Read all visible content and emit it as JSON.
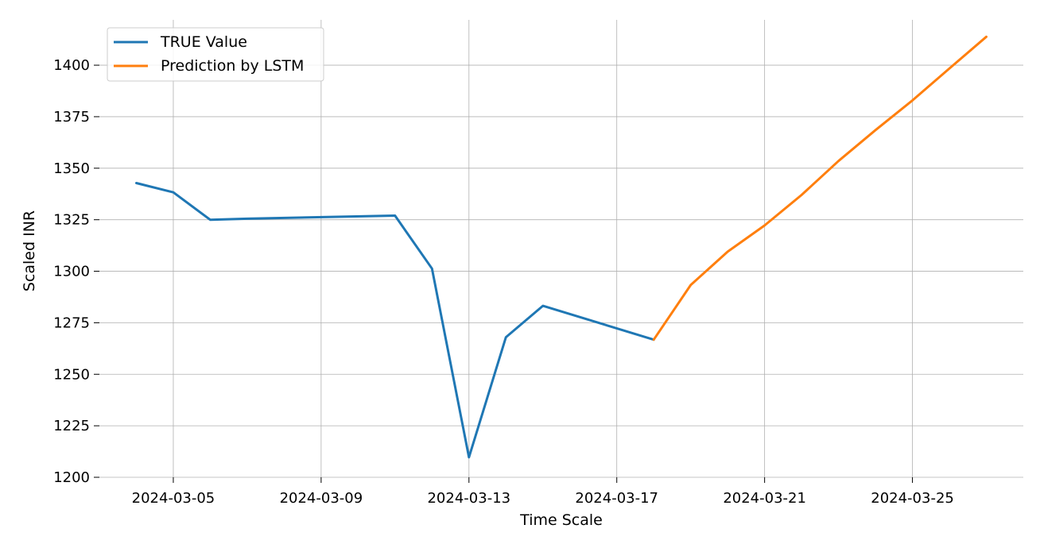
{
  "chart_data": {
    "type": "line",
    "title": "",
    "xlabel": "Time Scale",
    "ylabel": "Scaled INR",
    "xlim": [
      "2024-03-03",
      "2024-03-28"
    ],
    "ylim": [
      1200,
      1422
    ],
    "x_ticks": [
      "2024-03-05",
      "2024-03-09",
      "2024-03-13",
      "2024-03-17",
      "2024-03-21",
      "2024-03-25"
    ],
    "y_ticks": [
      1200,
      1225,
      1250,
      1275,
      1300,
      1325,
      1350,
      1375,
      1400
    ],
    "grid": true,
    "legend_position": "top-left",
    "series": [
      {
        "name": "TRUE Value",
        "color": "#1f77b4",
        "x": [
          "2024-03-04",
          "2024-03-05",
          "2024-03-06",
          "2024-03-07",
          "2024-03-11",
          "2024-03-12",
          "2024-03-13",
          "2024-03-14",
          "2024-03-15",
          "2024-03-18"
        ],
        "y": [
          1342.8,
          1338.3,
          1325.0,
          1325.5,
          1327.0,
          1301.3,
          1209.7,
          1268.0,
          1283.2,
          1266.8
        ]
      },
      {
        "name": "Prediction by LSTM",
        "color": "#ff7f0e",
        "x": [
          "2024-03-18",
          "2024-03-19",
          "2024-03-20",
          "2024-03-21",
          "2024-03-22",
          "2024-03-23",
          "2024-03-24",
          "2024-03-25",
          "2024-03-26",
          "2024-03-27"
        ],
        "y": [
          1266.8,
          1293.3,
          1309.5,
          1322.2,
          1337.0,
          1353.5,
          1368.5,
          1382.9,
          1398.4,
          1413.8
        ]
      }
    ]
  }
}
